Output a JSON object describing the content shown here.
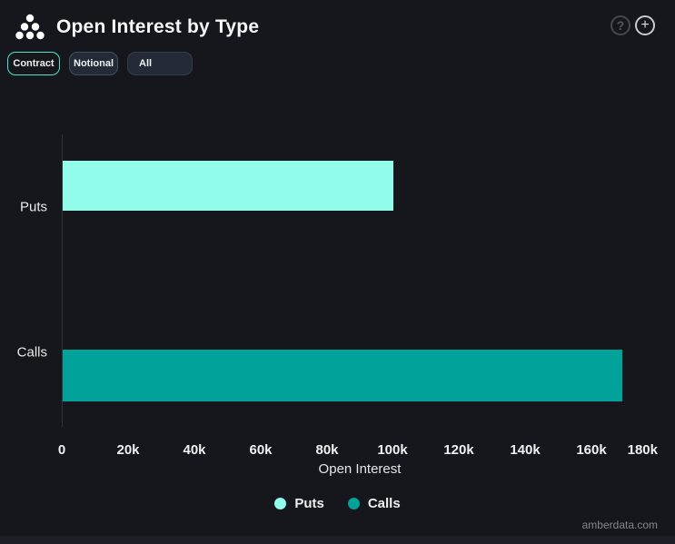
{
  "header": {
    "title": "Open Interest by Type",
    "help_label": "?",
    "add_label": "+"
  },
  "toolbar": {
    "buttons": [
      {
        "label": "Contract",
        "active": true
      },
      {
        "label": "Notional",
        "active": false
      },
      {
        "label": "All",
        "active": false,
        "type": "dropdown"
      }
    ]
  },
  "chart_data": {
    "type": "bar",
    "orientation": "horizontal",
    "title": "Open Interest by Type",
    "categories": [
      "Puts",
      "Calls"
    ],
    "series": [
      {
        "name": "Puts",
        "value": 100000,
        "color": "#90fce9"
      },
      {
        "name": "Calls",
        "value": 169000,
        "color": "#00a29a"
      }
    ],
    "xlabel": "Open Interest",
    "ylabel": "",
    "xlim": [
      0,
      180000
    ],
    "xticks": [
      "0",
      "20k",
      "40k",
      "60k",
      "80k",
      "100k",
      "120k",
      "140k",
      "160k",
      "180k"
    ],
    "grid": false,
    "legend": [
      "Puts",
      "Calls"
    ],
    "legend_position": "bottom"
  },
  "footer": {
    "watermark": "amberdata.com"
  },
  "colors": {
    "background": "#15171c",
    "puts": "#90fce9",
    "calls": "#00a29a",
    "active_border": "#4ee3c8",
    "axis_line": "#2e323a"
  }
}
